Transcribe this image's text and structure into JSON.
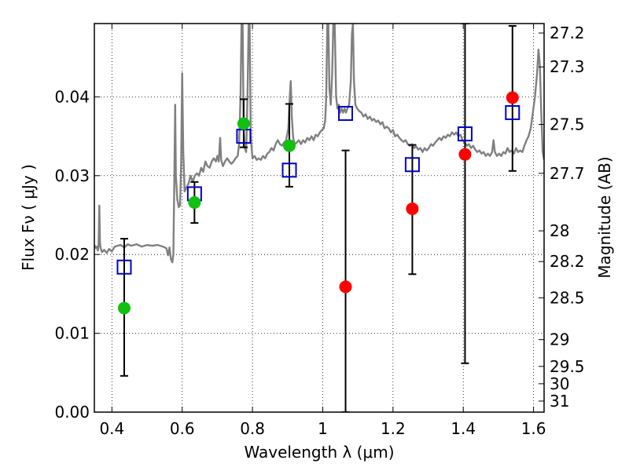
{
  "chart_data": {
    "type": "scatter",
    "xlabel": "Wavelength  λ (μm)",
    "ylabel": "Flux  Fν  ( μJy )",
    "ylabel_right": "Magnitude (AB)",
    "xlim": [
      0.35,
      1.63
    ],
    "ylim": [
      0.0,
      0.0493
    ],
    "grid": true,
    "x_ticks": [
      0.4,
      0.6,
      0.8,
      1.0,
      1.2,
      1.4,
      1.6
    ],
    "x_tick_labels": [
      "0.4",
      "0.6",
      "0.8",
      "1",
      "1.2",
      "1.4",
      "1.6"
    ],
    "y_ticks": [
      0.0,
      0.01,
      0.02,
      0.03,
      0.04
    ],
    "y_tick_labels": [
      "0.00",
      "0.01",
      "0.02",
      "0.03",
      "0.04"
    ],
    "right_ticks": [
      {
        "label": "27.2",
        "flux": 0.0481
      },
      {
        "label": "27.3",
        "flux": 0.0438
      },
      {
        "label": "27.5",
        "flux": 0.0365
      },
      {
        "label": "27.7",
        "flux": 0.0303
      },
      {
        "label": "28",
        "flux": 0.023
      },
      {
        "label": "28.2",
        "flux": 0.0191
      },
      {
        "label": "28.5",
        "flux": 0.0145
      },
      {
        "label": "29",
        "flux": 0.0092
      },
      {
        "label": "29.5",
        "flux": 0.0058
      },
      {
        "label": "30",
        "flux": 0.0036
      },
      {
        "label": "31",
        "flux": 0.0014
      }
    ],
    "spectrum": {
      "color": "#808080",
      "points": [
        [
          0.35,
          0.0212
        ],
        [
          0.355,
          0.0208
        ],
        [
          0.358,
          0.021
        ],
        [
          0.36,
          0.0205
        ],
        [
          0.362,
          0.0212
        ],
        [
          0.364,
          0.0262
        ],
        [
          0.366,
          0.0215
        ],
        [
          0.368,
          0.0208
        ],
        [
          0.372,
          0.0203
        ],
        [
          0.378,
          0.0206
        ],
        [
          0.385,
          0.0202
        ],
        [
          0.392,
          0.0207
        ],
        [
          0.4,
          0.0204
        ],
        [
          0.408,
          0.021
        ],
        [
          0.416,
          0.0211
        ],
        [
          0.425,
          0.0212
        ],
        [
          0.435,
          0.0209
        ],
        [
          0.445,
          0.0213
        ],
        [
          0.455,
          0.0211
        ],
        [
          0.47,
          0.0213
        ],
        [
          0.485,
          0.021
        ],
        [
          0.5,
          0.0212
        ],
        [
          0.515,
          0.0211
        ],
        [
          0.53,
          0.0212
        ],
        [
          0.545,
          0.021
        ],
        [
          0.555,
          0.0208
        ],
        [
          0.56,
          0.0199
        ],
        [
          0.564,
          0.0209
        ],
        [
          0.568,
          0.0194
        ],
        [
          0.572,
          0.019
        ],
        [
          0.575,
          0.02
        ],
        [
          0.578,
          0.031
        ],
        [
          0.58,
          0.039
        ],
        [
          0.582,
          0.03
        ],
        [
          0.586,
          0.027
        ],
        [
          0.59,
          0.026
        ],
        [
          0.594,
          0.0262
        ],
        [
          0.597,
          0.0315
        ],
        [
          0.6,
          0.043
        ],
        [
          0.603,
          0.033
        ],
        [
          0.607,
          0.028
        ],
        [
          0.612,
          0.0285
        ],
        [
          0.618,
          0.029
        ],
        [
          0.624,
          0.03
        ],
        [
          0.63,
          0.0292
        ],
        [
          0.636,
          0.03
        ],
        [
          0.642,
          0.0303
        ],
        [
          0.648,
          0.03
        ],
        [
          0.654,
          0.031
        ],
        [
          0.66,
          0.0305
        ],
        [
          0.666,
          0.0318
        ],
        [
          0.672,
          0.0312
        ],
        [
          0.678,
          0.031
        ],
        [
          0.684,
          0.0318
        ],
        [
          0.69,
          0.0322
        ],
        [
          0.696,
          0.0318
        ],
        [
          0.7,
          0.0325
        ],
        [
          0.704,
          0.0318
        ],
        [
          0.708,
          0.0348
        ],
        [
          0.711,
          0.032
        ],
        [
          0.716,
          0.0312
        ],
        [
          0.722,
          0.0318
        ],
        [
          0.728,
          0.0322
        ],
        [
          0.734,
          0.0318
        ],
        [
          0.74,
          0.0315
        ],
        [
          0.746,
          0.0318
        ],
        [
          0.752,
          0.0322
        ],
        [
          0.758,
          0.0325
        ],
        [
          0.762,
          0.034
        ],
        [
          0.766,
          0.04
        ],
        [
          0.769,
          0.0493
        ],
        [
          0.772,
          0.0493
        ],
        [
          0.775,
          0.036
        ],
        [
          0.778,
          0.0335
        ],
        [
          0.782,
          0.033
        ],
        [
          0.786,
          0.04
        ],
        [
          0.789,
          0.0493
        ],
        [
          0.792,
          0.0493
        ],
        [
          0.795,
          0.035
        ],
        [
          0.8,
          0.0322
        ],
        [
          0.806,
          0.0325
        ],
        [
          0.812,
          0.032
        ],
        [
          0.818,
          0.0322
        ],
        [
          0.824,
          0.032
        ],
        [
          0.83,
          0.0325
        ],
        [
          0.836,
          0.0322
        ],
        [
          0.842,
          0.0328
        ],
        [
          0.848,
          0.033
        ],
        [
          0.854,
          0.0335
        ],
        [
          0.86,
          0.0332
        ],
        [
          0.866,
          0.034
        ],
        [
          0.872,
          0.0345
        ],
        [
          0.878,
          0.034
        ],
        [
          0.884,
          0.0338
        ],
        [
          0.89,
          0.0342
        ],
        [
          0.896,
          0.0345
        ],
        [
          0.902,
          0.036
        ],
        [
          0.906,
          0.04
        ],
        [
          0.909,
          0.042
        ],
        [
          0.912,
          0.0375
        ],
        [
          0.916,
          0.0348
        ],
        [
          0.92,
          0.034
        ],
        [
          0.926,
          0.0342
        ],
        [
          0.932,
          0.0345
        ],
        [
          0.938,
          0.034
        ],
        [
          0.944,
          0.0345
        ],
        [
          0.95,
          0.0342
        ],
        [
          0.956,
          0.0348
        ],
        [
          0.962,
          0.0345
        ],
        [
          0.968,
          0.035
        ],
        [
          0.974,
          0.0345
        ],
        [
          0.98,
          0.0352
        ],
        [
          0.986,
          0.035
        ],
        [
          0.992,
          0.0355
        ],
        [
          0.998,
          0.0358
        ],
        [
          1.003,
          0.036
        ],
        [
          1.007,
          0.037
        ],
        [
          1.01,
          0.04
        ],
        [
          1.013,
          0.0493
        ],
        [
          1.016,
          0.0493
        ],
        [
          1.019,
          0.041
        ],
        [
          1.023,
          0.039
        ],
        [
          1.027,
          0.043
        ],
        [
          1.03,
          0.0493
        ],
        [
          1.034,
          0.0493
        ],
        [
          1.038,
          0.04
        ],
        [
          1.042,
          0.0385
        ],
        [
          1.046,
          0.039
        ],
        [
          1.05,
          0.038
        ],
        [
          1.054,
          0.0385
        ],
        [
          1.058,
          0.038
        ],
        [
          1.062,
          0.0385
        ],
        [
          1.066,
          0.038
        ],
        [
          1.07,
          0.0385
        ],
        [
          1.075,
          0.039
        ],
        [
          1.08,
          0.042
        ],
        [
          1.083,
          0.048
        ],
        [
          1.086,
          0.0493
        ],
        [
          1.089,
          0.042
        ],
        [
          1.093,
          0.039
        ],
        [
          1.098,
          0.0385
        ],
        [
          1.104,
          0.0382
        ],
        [
          1.11,
          0.038
        ],
        [
          1.116,
          0.0375
        ],
        [
          1.122,
          0.0378
        ],
        [
          1.128,
          0.0372
        ],
        [
          1.134,
          0.0375
        ],
        [
          1.14,
          0.037
        ],
        [
          1.146,
          0.0372
        ],
        [
          1.152,
          0.0368
        ],
        [
          1.158,
          0.037
        ],
        [
          1.164,
          0.0365
        ],
        [
          1.17,
          0.0368
        ],
        [
          1.176,
          0.036
        ],
        [
          1.182,
          0.0362
        ],
        [
          1.188,
          0.036
        ],
        [
          1.194,
          0.0355
        ],
        [
          1.2,
          0.0358
        ],
        [
          1.206,
          0.035
        ],
        [
          1.212,
          0.0352
        ],
        [
          1.218,
          0.0348
        ],
        [
          1.224,
          0.0345
        ],
        [
          1.23,
          0.0343
        ],
        [
          1.236,
          0.0345
        ],
        [
          1.242,
          0.034
        ],
        [
          1.248,
          0.0338
        ],
        [
          1.254,
          0.034
        ],
        [
          1.26,
          0.0335
        ],
        [
          1.266,
          0.0337
        ],
        [
          1.272,
          0.0333
        ],
        [
          1.278,
          0.0335
        ],
        [
          1.284,
          0.033
        ],
        [
          1.29,
          0.0335
        ],
        [
          1.296,
          0.0332
        ],
        [
          1.302,
          0.0335
        ],
        [
          1.308,
          0.034
        ],
        [
          1.314,
          0.0338
        ],
        [
          1.32,
          0.0342
        ],
        [
          1.326,
          0.0345
        ],
        [
          1.332,
          0.0348
        ],
        [
          1.338,
          0.0345
        ],
        [
          1.344,
          0.035
        ],
        [
          1.35,
          0.0348
        ],
        [
          1.356,
          0.0352
        ],
        [
          1.362,
          0.035
        ],
        [
          1.368,
          0.0355
        ],
        [
          1.374,
          0.0352
        ],
        [
          1.38,
          0.0355
        ],
        [
          1.386,
          0.035
        ],
        [
          1.392,
          0.0352
        ],
        [
          1.398,
          0.0345
        ],
        [
          1.404,
          0.0342
        ],
        [
          1.41,
          0.0338
        ],
        [
          1.416,
          0.034
        ],
        [
          1.422,
          0.0335
        ],
        [
          1.428,
          0.0338
        ],
        [
          1.434,
          0.0333
        ],
        [
          1.44,
          0.033
        ],
        [
          1.446,
          0.0332
        ],
        [
          1.452,
          0.0328
        ],
        [
          1.458,
          0.033
        ],
        [
          1.464,
          0.0325
        ],
        [
          1.47,
          0.0328
        ],
        [
          1.476,
          0.0325
        ],
        [
          1.482,
          0.033
        ],
        [
          1.486,
          0.0345
        ],
        [
          1.49,
          0.033
        ],
        [
          1.496,
          0.0325
        ],
        [
          1.502,
          0.0328
        ],
        [
          1.508,
          0.0325
        ],
        [
          1.514,
          0.033
        ],
        [
          1.52,
          0.0328
        ],
        [
          1.526,
          0.0335
        ],
        [
          1.532,
          0.033
        ],
        [
          1.538,
          0.0332
        ],
        [
          1.544,
          0.0328
        ],
        [
          1.55,
          0.0335
        ],
        [
          1.556,
          0.033
        ],
        [
          1.562,
          0.0332
        ],
        [
          1.568,
          0.033
        ],
        [
          1.574,
          0.0338
        ],
        [
          1.58,
          0.0345
        ],
        [
          1.586,
          0.035
        ],
        [
          1.592,
          0.036
        ],
        [
          1.598,
          0.038
        ],
        [
          1.604,
          0.04
        ],
        [
          1.61,
          0.043
        ],
        [
          1.614,
          0.046
        ],
        [
          1.618,
          0.044
        ],
        [
          1.622,
          0.038
        ],
        [
          1.626,
          0.033
        ],
        [
          1.63,
          0.032
        ]
      ]
    },
    "series": [
      {
        "marker": "open-square",
        "color": "#0000cc",
        "points": [
          [
            0.435,
            0.0184
          ],
          [
            0.635,
            0.0277
          ],
          [
            0.775,
            0.035
          ],
          [
            0.905,
            0.0307
          ],
          [
            1.065,
            0.0379
          ],
          [
            1.255,
            0.0314
          ],
          [
            1.405,
            0.0353
          ],
          [
            1.54,
            0.038
          ]
        ]
      },
      {
        "marker": "circle",
        "color": "#11c011",
        "points": [
          [
            0.435,
            0.0132
          ],
          [
            0.635,
            0.0266
          ],
          [
            0.775,
            0.0366
          ],
          [
            0.905,
            0.0338
          ]
        ]
      },
      {
        "marker": "circle",
        "color": "#ff0000",
        "points": [
          [
            1.065,
            0.0159
          ],
          [
            1.255,
            0.0258
          ],
          [
            1.405,
            0.0327
          ],
          [
            1.54,
            0.0399
          ]
        ]
      }
    ],
    "error_bars": [
      {
        "x": 0.435,
        "low": 0.0046,
        "high": 0.022
      },
      {
        "x": 0.635,
        "low": 0.024,
        "high": 0.0292
      },
      {
        "x": 0.775,
        "low": 0.0336,
        "high": 0.0397
      },
      {
        "x": 0.905,
        "low": 0.0286,
        "high": 0.0391
      },
      {
        "x": 1.065,
        "low": 0.0,
        "high": 0.0332
      },
      {
        "x": 1.255,
        "low": 0.0175,
        "high": 0.0339
      },
      {
        "x": 1.405,
        "low": 0.0062,
        "high": 0.0493
      },
      {
        "x": 1.54,
        "low": 0.0306,
        "high": 0.049
      }
    ]
  }
}
